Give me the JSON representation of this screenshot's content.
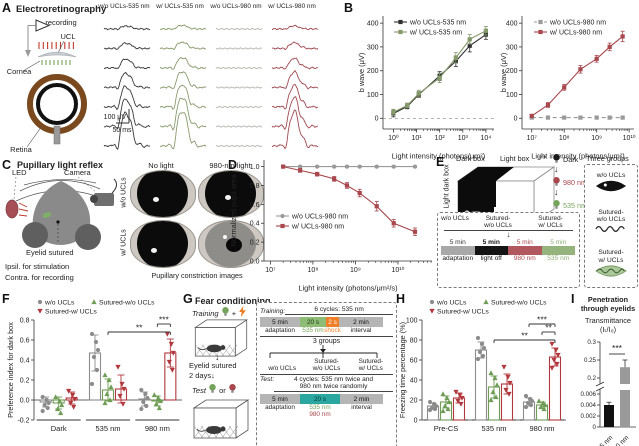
{
  "panelA": {
    "letter": "A",
    "title": "Electroretinography",
    "labels": {
      "recording": "recording",
      "ucl": "UCL",
      "cornea": "Cornea",
      "retina": "Retina"
    },
    "scale_v": "100 μV",
    "scale_t": "50 ms",
    "trace_columns": [
      {
        "label": "w/o UCLs-535 nm",
        "color": "#3a3a3a",
        "amplitudes": [
          0.09,
          0.16,
          0.27,
          0.43,
          0.62,
          0.83,
          1.0
        ]
      },
      {
        "label": "w/ UCLs-535 nm",
        "color": "#8a9b6e",
        "amplitudes": [
          0.11,
          0.19,
          0.31,
          0.48,
          0.67,
          0.88,
          1.05
        ]
      },
      {
        "label": "w/o UCLs-980 nm",
        "color": "#b6bab0",
        "amplitudes": [
          0,
          0,
          0,
          0,
          0,
          0,
          0
        ]
      },
      {
        "label": "w/ UCLs-980 nm",
        "color": "#a04a50",
        "amplitudes": [
          0.09,
          0.17,
          0.28,
          0.45,
          0.63,
          0.84,
          1.0
        ]
      }
    ]
  },
  "panelB": {
    "letter": "B"
  },
  "panelC": {
    "letter": "C",
    "title": "Pupillary light reflex",
    "led": "LED",
    "camera": "Camera",
    "eyelid": "Eyelid sutured",
    "line1": "Ipsil. for stimulation",
    "line2": "Contra. for recording",
    "col_headers": [
      "No light",
      "980-nm light"
    ],
    "row_labels": [
      "w/o UCLs",
      "w/ UCLs"
    ],
    "caption": "Pupillary constriction images"
  },
  "panelD": {
    "letter": "D"
  },
  "panelE": {
    "letter": "E",
    "vertical_label": "Light dark box",
    "dark_box": "Dark box",
    "light_box": "Light box",
    "arrow": "⇢",
    "down_arrow": "↓",
    "sequence": [
      {
        "label": "Dark",
        "color": "#1a1a1a",
        "text_color": "#222"
      },
      {
        "label": "980 nm",
        "color": "#a8474d",
        "text_color": "#a8474d"
      },
      {
        "label": "535 nm",
        "color": "#74a45c",
        "text_color": "#74a45c"
      }
    ],
    "groups_title": "Three groups",
    "groups": [
      {
        "lines": [
          "w/o UCLs"
        ],
        "icon": "eye-black"
      },
      {
        "lines": [
          "Sutured-",
          "w/o UCLs"
        ],
        "icon": "stitches"
      },
      {
        "lines": [
          "Sutured-",
          "w/ UCLs"
        ],
        "icon": "eye-green"
      }
    ],
    "timeline": {
      "groups": [
        [
          "w/o UCLs"
        ],
        [
          "Sutured-",
          "w/o UCLs"
        ],
        [
          "Sutured-",
          "w/ UCLs"
        ]
      ],
      "segments": [
        {
          "dur": "5 min",
          "dur_color": "#333",
          "dur_bold": false,
          "bar": "#a8a8a8",
          "label": "adaptation",
          "label_color": "#222"
        },
        {
          "dur": "5 min",
          "dur_color": "#111",
          "dur_bold": true,
          "bar": "#141414",
          "label": "light off",
          "label_color": "#111"
        },
        {
          "dur": "5 min",
          "dur_color": "#a8474d",
          "dur_bold": false,
          "bar": "#b0585e",
          "label": "980 nm",
          "label_color": "#a8474d"
        },
        {
          "dur": "5 min",
          "dur_color": "#8faf78",
          "dur_bold": false,
          "bar": "#94b37d",
          "label": "535 nm",
          "label_color": "#8faf78"
        }
      ]
    }
  },
  "panelF": {
    "letter": "F"
  },
  "panelG": {
    "letter": "G",
    "title": "Fear conditioning",
    "training_label": "Training",
    "plus": "+",
    "test_label": "Test",
    "or_label": "or",
    "down_arrow": "↓",
    "eyelid_line1": "Eyelid sutured",
    "eyelid_line2": "2 days↓",
    "box": {
      "training_title": "Training:",
      "training_cycles": "6 cycles: 535 nm",
      "train_segments": [
        {
          "dur": "5 min",
          "label": "adaptation",
          "bar": "#b5b5b5",
          "dur_color": "#111",
          "label_color": "#222"
        },
        {
          "dur": "20 s",
          "label": "535 nm",
          "bar": "#8fbc74",
          "dur_color": "#143314",
          "label_color": "#74a45c"
        },
        {
          "dur": "2 s",
          "label": "shock",
          "bar": "#f07f28",
          "dur_color": "#ffffff",
          "label_color": "#f07f28"
        },
        {
          "dur": "2 min",
          "label": "interval",
          "bar": "#b5b5b5",
          "dur_color": "#111",
          "label_color": "#222"
        }
      ],
      "groups_label": "3 groups",
      "groups": [
        [
          "w/o UCLs"
        ],
        [
          "Sutured-",
          "w/o UCLs"
        ],
        [
          "Sutured-",
          "w/ UCLs"
        ]
      ],
      "test_title": "Test:",
      "test_cycles_line1": "4 cycles: 535 nm twice and",
      "test_cycles_line2": "980 nm twice randomly",
      "test_segments": [
        {
          "dur": "5 min",
          "label": "adaptation",
          "bar": "#b5b5b5",
          "dur_color": "#111",
          "label_color": "#222"
        },
        {
          "dur": "20 s",
          "labels": [
            "535 nm",
            "980 nm"
          ],
          "label_colors": [
            "#74a45c",
            "#a8474d"
          ],
          "bar": "#2aa7a0",
          "dur_color": "#0b3533"
        },
        {
          "dur": "2 min",
          "label": "interval",
          "bar": "#b5b5b5",
          "dur_color": "#111",
          "label_color": "#222"
        }
      ]
    }
  },
  "panelH": {
    "letter": "H"
  },
  "panelI": {
    "letter": "I",
    "title_line1": "Penetration",
    "title_line2": "through eyelids",
    "subtitle_line1": "Transmittance",
    "subtitle_line2": "(Iₜ/I₀)"
  },
  "chart_data": [
    {
      "id": "b535",
      "type": "line",
      "xlabel": "Light intensity (photons/μm²)",
      "ylabel": "b wave (μV)",
      "xlim": [
        -0.45,
        4.35
      ],
      "ylim": [
        -45,
        430
      ],
      "yticks": [
        0,
        100,
        200,
        300,
        400
      ],
      "ytick_labels": [
        "0",
        "100",
        "200",
        "300",
        "400"
      ],
      "xtick_exps": [
        0,
        1,
        2,
        3,
        4
      ],
      "xtick_labels": [
        "10⁰",
        "10¹",
        "10²",
        "10³",
        "10⁴"
      ],
      "zero_dash": true,
      "x": [
        0,
        0.6,
        1.1,
        2,
        2.7,
        3.3,
        4
      ],
      "series": [
        {
          "name": "w/o UCLs-535 nm",
          "color": "#2e2e2e",
          "marker": "square",
          "values": [
            20,
            50,
            100,
            178,
            240,
            305,
            352
          ],
          "err": [
            14,
            10,
            12,
            18,
            22,
            26,
            20
          ]
        },
        {
          "name": "w/ UCLs-535 nm",
          "color": "#85996b",
          "marker": "square",
          "values": [
            26,
            54,
            104,
            170,
            254,
            332,
            368
          ],
          "err": [
            12,
            10,
            14,
            20,
            22,
            20,
            18
          ]
        }
      ],
      "legend_position": "top-left",
      "grid": false
    },
    {
      "id": "b980",
      "type": "line",
      "xlabel": "Light intensity (photons/μm²)",
      "ylabel": "b wave (μV)",
      "xlim": [
        6.7,
        10.15
      ],
      "ylim": [
        -45,
        430
      ],
      "yticks": [
        0,
        100,
        200,
        300,
        400
      ],
      "ytick_labels": [
        "0",
        "100",
        "200",
        "300",
        "400"
      ],
      "xtick_exps": [
        7,
        8,
        9,
        10
      ],
      "xtick_labels": [
        "10⁷",
        "10⁸",
        "10⁹",
        "10¹⁰"
      ],
      "zero_dash": false,
      "x": [
        7.0,
        7.5,
        8.0,
        8.5,
        9.0,
        9.4,
        9.8
      ],
      "series": [
        {
          "name": "w/o UCLs-980 nm",
          "color": "#9a9a9a",
          "marker": "square",
          "dashed": true,
          "values": [
            3,
            3,
            3,
            3,
            3,
            3,
            3
          ],
          "err": [
            3,
            3,
            3,
            3,
            3,
            3,
            3
          ]
        },
        {
          "name": "w/ UCLs-980 nm",
          "color": "#a8474d",
          "marker": "square",
          "values": [
            10,
            56,
            130,
            206,
            250,
            300,
            344
          ],
          "err": [
            6,
            10,
            12,
            16,
            14,
            16,
            22
          ]
        }
      ],
      "legend_position": "top-left",
      "grid": false
    },
    {
      "id": "pupil",
      "type": "line",
      "xlabel": "Light intensity (photons/μm²/s)",
      "ylabel": "Normalized pupil area",
      "xlim": [
        6.85,
        10.8
      ],
      "ylim": [
        0,
        1.07
      ],
      "yticks": [
        0,
        0.2,
        0.4,
        0.6,
        0.8,
        1.0
      ],
      "ytick_labels": [
        "0.0",
        "0.2",
        "0.4",
        "0.6",
        "0.8",
        "1.0"
      ],
      "xtick_exps": [
        7,
        8,
        9,
        10
      ],
      "xtick_labels": [
        "10⁷",
        "10⁸",
        "10⁹",
        "10¹⁰"
      ],
      "zero_dash": false,
      "x": [
        7.3,
        7.7,
        8.1,
        8.5,
        8.8,
        9.1,
        9.5,
        9.9,
        10.4
      ],
      "series": [
        {
          "name": "w/o UCLs-980 nm",
          "color": "#9a9a9a",
          "marker": "circle",
          "values": [
            1,
            1,
            1,
            1,
            1,
            1,
            1,
            1,
            1
          ],
          "err": [
            0.01,
            0.01,
            0.01,
            0.01,
            0.01,
            0.01,
            0.01,
            0.01,
            0.01
          ]
        },
        {
          "name": "w/ UCLs-980 nm",
          "color": "#a8474d",
          "marker": "square",
          "values": [
            1.0,
            0.96,
            0.92,
            0.87,
            0.8,
            0.72,
            0.58,
            0.4,
            0.31
          ],
          "err": [
            0.012,
            0.02,
            0.02,
            0.025,
            0.03,
            0.04,
            0.05,
            0.04,
            0.04
          ]
        }
      ],
      "legend_position": "middle-left",
      "grid": false
    },
    {
      "id": "pref",
      "type": "bar",
      "ylabel": "Preference index for dark box",
      "categories": [
        "Dark",
        "535 nm",
        "980 nm"
      ],
      "ylim": [
        -0.2,
        0.8
      ],
      "yticks": [
        -0.2,
        0,
        0.2,
        0.4,
        0.6,
        0.8
      ],
      "ytick_labels": [
        "-0.2",
        "0.0",
        "0.2",
        "0.4",
        "0.6",
        "0.8"
      ],
      "series": [
        {
          "name": "w/o UCLs",
          "color": "#8c8c8c",
          "marker": "circle",
          "values": [
            -0.02,
            0.47,
            0.01
          ],
          "err": [
            0.05,
            0.18,
            0.07
          ],
          "points": [
            [
              0.03,
              0.0,
              -0.03,
              -0.05,
              -0.08,
              -0.11
            ],
            [
              0.66,
              0.58,
              0.5,
              0.43,
              0.3,
              0.16
            ],
            [
              0.1,
              0.06,
              0.02,
              -0.02,
              -0.06,
              -0.09
            ]
          ]
        },
        {
          "name": "Sutured-w/o UCLs",
          "color": "#6f9d55",
          "marker": "triangle",
          "values": [
            -0.03,
            0.1,
            -0.01
          ],
          "err": [
            0.06,
            0.11,
            0.05
          ],
          "points": [
            [
              0.03,
              -0.01,
              -0.05,
              -0.09,
              -0.13
            ],
            [
              0.25,
              0.2,
              0.13,
              0.06,
              0.0,
              -0.03
            ],
            [
              0.05,
              0.02,
              -0.01,
              -0.04,
              -0.08
            ]
          ]
        },
        {
          "name": "Sutured-w/ UCLs",
          "color": "#b2383e",
          "marker": "triangle-down",
          "values": [
            0.02,
            0.11,
            0.47
          ],
          "err": [
            0.06,
            0.14,
            0.14
          ],
          "points": [
            [
              0.09,
              0.05,
              0.01,
              -0.03,
              -0.07
            ],
            [
              0.33,
              0.16,
              0.11,
              0.04,
              -0.04
            ],
            [
              0.66,
              0.56,
              0.47,
              0.38,
              0.3
            ]
          ]
        }
      ],
      "sig": [
        {
          "a": [
            1,
            1
          ],
          "b": [
            2,
            2
          ],
          "y": 0.68,
          "label": "**"
        },
        {
          "a": [
            2,
            1
          ],
          "b": [
            2,
            2
          ],
          "y": 0.76,
          "label": "***"
        }
      ]
    },
    {
      "id": "freeze",
      "type": "bar",
      "ylabel": "Freezing time percentage (%)",
      "categories": [
        "Pre-CS",
        "535 nm",
        "980 nm"
      ],
      "ylim": [
        0,
        100
      ],
      "yticks": [
        0,
        20,
        40,
        60,
        80,
        100
      ],
      "ytick_labels": [
        "0",
        "20",
        "40",
        "60",
        "80",
        "100"
      ],
      "series": [
        {
          "name": "w/o UCLs",
          "color": "#8c8c8c",
          "marker": "circle",
          "values": [
            14,
            70,
            18
          ],
          "err": [
            3,
            8,
            4
          ],
          "points": [
            [
              18,
              16,
              14,
              12,
              11,
              10
            ],
            [
              82,
              76,
              72,
              68,
              64,
              61
            ],
            [
              24,
              21,
              19,
              17,
              15,
              13
            ]
          ]
        },
        {
          "name": "Sutured-w/o UCLs",
          "color": "#6f9d55",
          "marker": "triangle",
          "values": [
            18,
            33,
            15
          ],
          "err": [
            6,
            11,
            3
          ],
          "points": [
            [
              26,
              22,
              18,
              14,
              11,
              9
            ],
            [
              47,
              42,
              35,
              28,
              23,
              20
            ],
            [
              19,
              17,
              15,
              13,
              11
            ]
          ]
        },
        {
          "name": "Sutured-w/ UCLs",
          "color": "#b2383e",
          "marker": "triangle-down",
          "values": [
            22,
            36,
            63
          ],
          "err": [
            5,
            10,
            9
          ],
          "points": [
            [
              28,
              25,
              22,
              19,
              16
            ],
            [
              53,
              43,
              37,
              30,
              26
            ],
            [
              76,
              70,
              65,
              60,
              56,
              52
            ]
          ]
        }
      ],
      "sig": [
        {
          "a": [
            1,
            1
          ],
          "b": [
            2,
            2
          ],
          "y": 80,
          "label": "**"
        },
        {
          "a": [
            2,
            1
          ],
          "b": [
            2,
            2
          ],
          "y": 88,
          "label": "**"
        },
        {
          "a": [
            2,
            0
          ],
          "b": [
            2,
            2
          ],
          "y": 96,
          "label": "***"
        }
      ]
    },
    {
      "id": "trans",
      "type": "broken_bar",
      "categories": [
        "535 nm",
        "980 nm"
      ],
      "values": [
        0.004,
        0.23
      ],
      "err": [
        0.0005,
        0.02
      ],
      "bar_colors": [
        "#111111",
        "#9a9a9a"
      ],
      "yticks_low": [
        0,
        0.002,
        0.004,
        0.006
      ],
      "ytick_low_labels": [
        "0",
        "0.002",
        "0.004",
        "0.006"
      ],
      "yticks_high": [
        0.2,
        0.25,
        0.3
      ],
      "ytick_high_labels": [
        "0.2",
        "0.25",
        "0.3"
      ],
      "sig": "***"
    }
  ]
}
